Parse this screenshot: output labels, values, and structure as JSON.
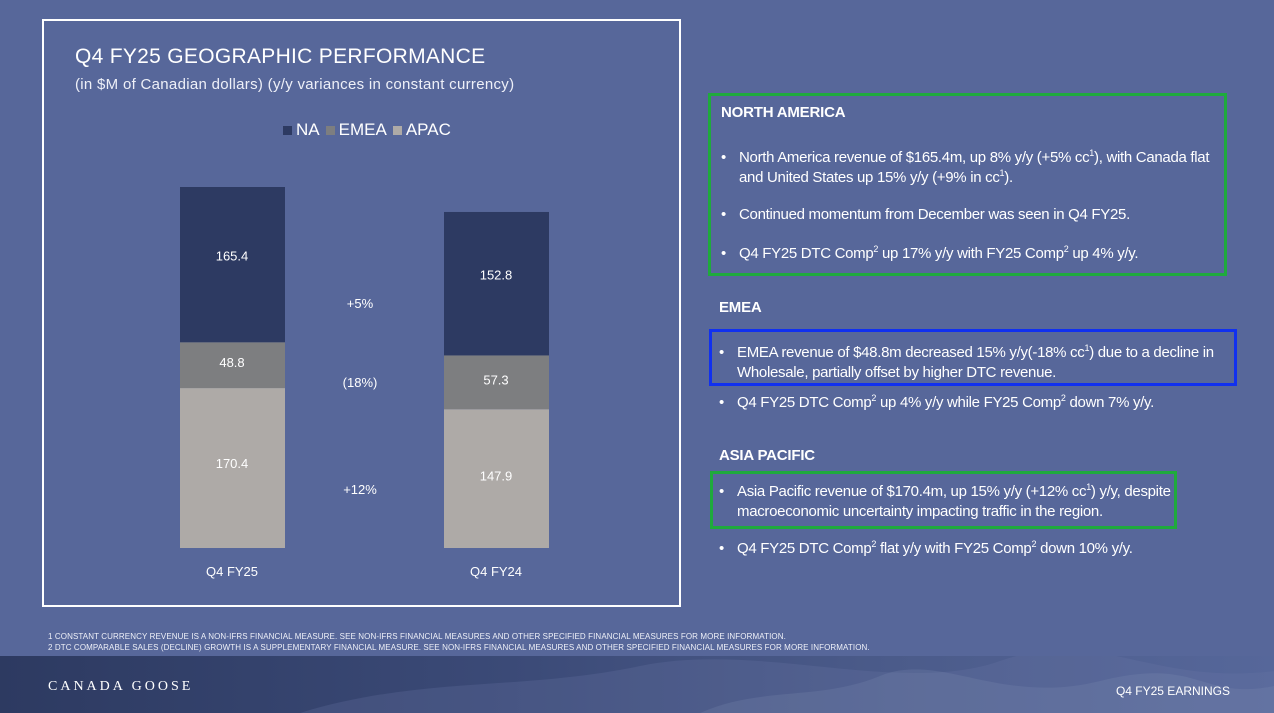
{
  "slide": {
    "title": "Q4 FY25 GEOGRAPHIC PERFORMANCE",
    "subtitle": "(in $M of Canadian dollars) (y/y variances in constant currency)"
  },
  "chart_data": {
    "type": "bar",
    "stacked": true,
    "categories": [
      "Q4 FY25",
      "Q4 FY24"
    ],
    "series": [
      {
        "name": "NA",
        "color": "#2d3a62",
        "values": [
          165.4,
          152.8
        ],
        "labels": [
          "165.4",
          "152.8"
        ]
      },
      {
        "name": "EMEA",
        "color": "#7d7e80",
        "values": [
          48.8,
          57.3
        ],
        "labels": [
          "48.8",
          "57.3"
        ]
      },
      {
        "name": "APAC",
        "color": "#aeaaa7",
        "values": [
          170.4,
          147.9
        ],
        "labels": [
          "170.4",
          "147.9"
        ]
      }
    ],
    "variance_labels": {
      "NA": "+5%",
      "EMEA": "(18%)",
      "APAC": "+12%"
    },
    "title": "Q4 FY25 GEOGRAPHIC PERFORMANCE",
    "subtitle": "(in $M of Canadian dollars) (y/y variances in constant currency)",
    "legend_position": "top-center",
    "grid": false,
    "ylim": [
      0,
      384.6
    ]
  },
  "sections": {
    "na": {
      "heading": "NORTH AMERICA",
      "bullets": [
        {
          "pre": "North America revenue of $165.4m, up 8% y/y (+5% cc",
          "sup": "1",
          "post": "), with Canada flat and United States up 15% y/y (+9% in cc",
          "sup2": "1",
          "post2": ")."
        },
        {
          "pre": "Continued momentum from December was seen in Q4 FY25."
        },
        {
          "pre": "Q4 FY25 DTC Comp",
          "sup": "2",
          "post": " up 17% y/y with FY25 Comp",
          "sup2": "2",
          "post2": " up 4% y/y."
        }
      ]
    },
    "emea": {
      "heading": "EMEA",
      "bullets": [
        {
          "pre": "EMEA revenue of $48.8m decreased  15% y/y(-18% cc",
          "sup": "1",
          "post": ")  due to a decline in Wholesale, partially offset by  higher DTC revenue."
        },
        {
          "pre": "Q4 FY25 DTC Comp",
          "sup": "2",
          "post": " up 4% y/y while FY25 Comp",
          "sup2": "2",
          "post2": " down 7% y/y."
        }
      ]
    },
    "apac": {
      "heading": "ASIA PACIFIC",
      "bullets": [
        {
          "pre": "Asia Pacific revenue of $170.4m, up 15% y/y (+12% cc",
          "sup": "1",
          "post": ") y/y, despite macroeconomic uncertainty impacting traffic in the region."
        },
        {
          "pre": "Q4 FY25 DTC Comp",
          "sup": "2",
          "post": " flat y/y with FY25 Comp",
          "sup2": "2",
          "post2": " down 10% y/y."
        }
      ]
    }
  },
  "footnotes": {
    "line1": "1 CONSTANT CURRENCY REVENUE IS A NON-IFRS FINANCIAL MEASURE. SEE NON-IFRS FINANCIAL MEASURES AND OTHER SPECIFIED FINANCIAL MEASURES FOR MORE INFORMATION.",
    "line2": "2 DTC COMPARABLE SALES (DECLINE) GROWTH IS A SUPPLEMENTARY FINANCIAL MEASURE. SEE NON-IFRS FINANCIAL MEASURES AND OTHER SPECIFIED FINANCIAL MEASURES FOR MORE INFORMATION."
  },
  "footer": {
    "brand": "CANADA GOOSE",
    "tag": "Q4 FY25 EARNINGS"
  }
}
